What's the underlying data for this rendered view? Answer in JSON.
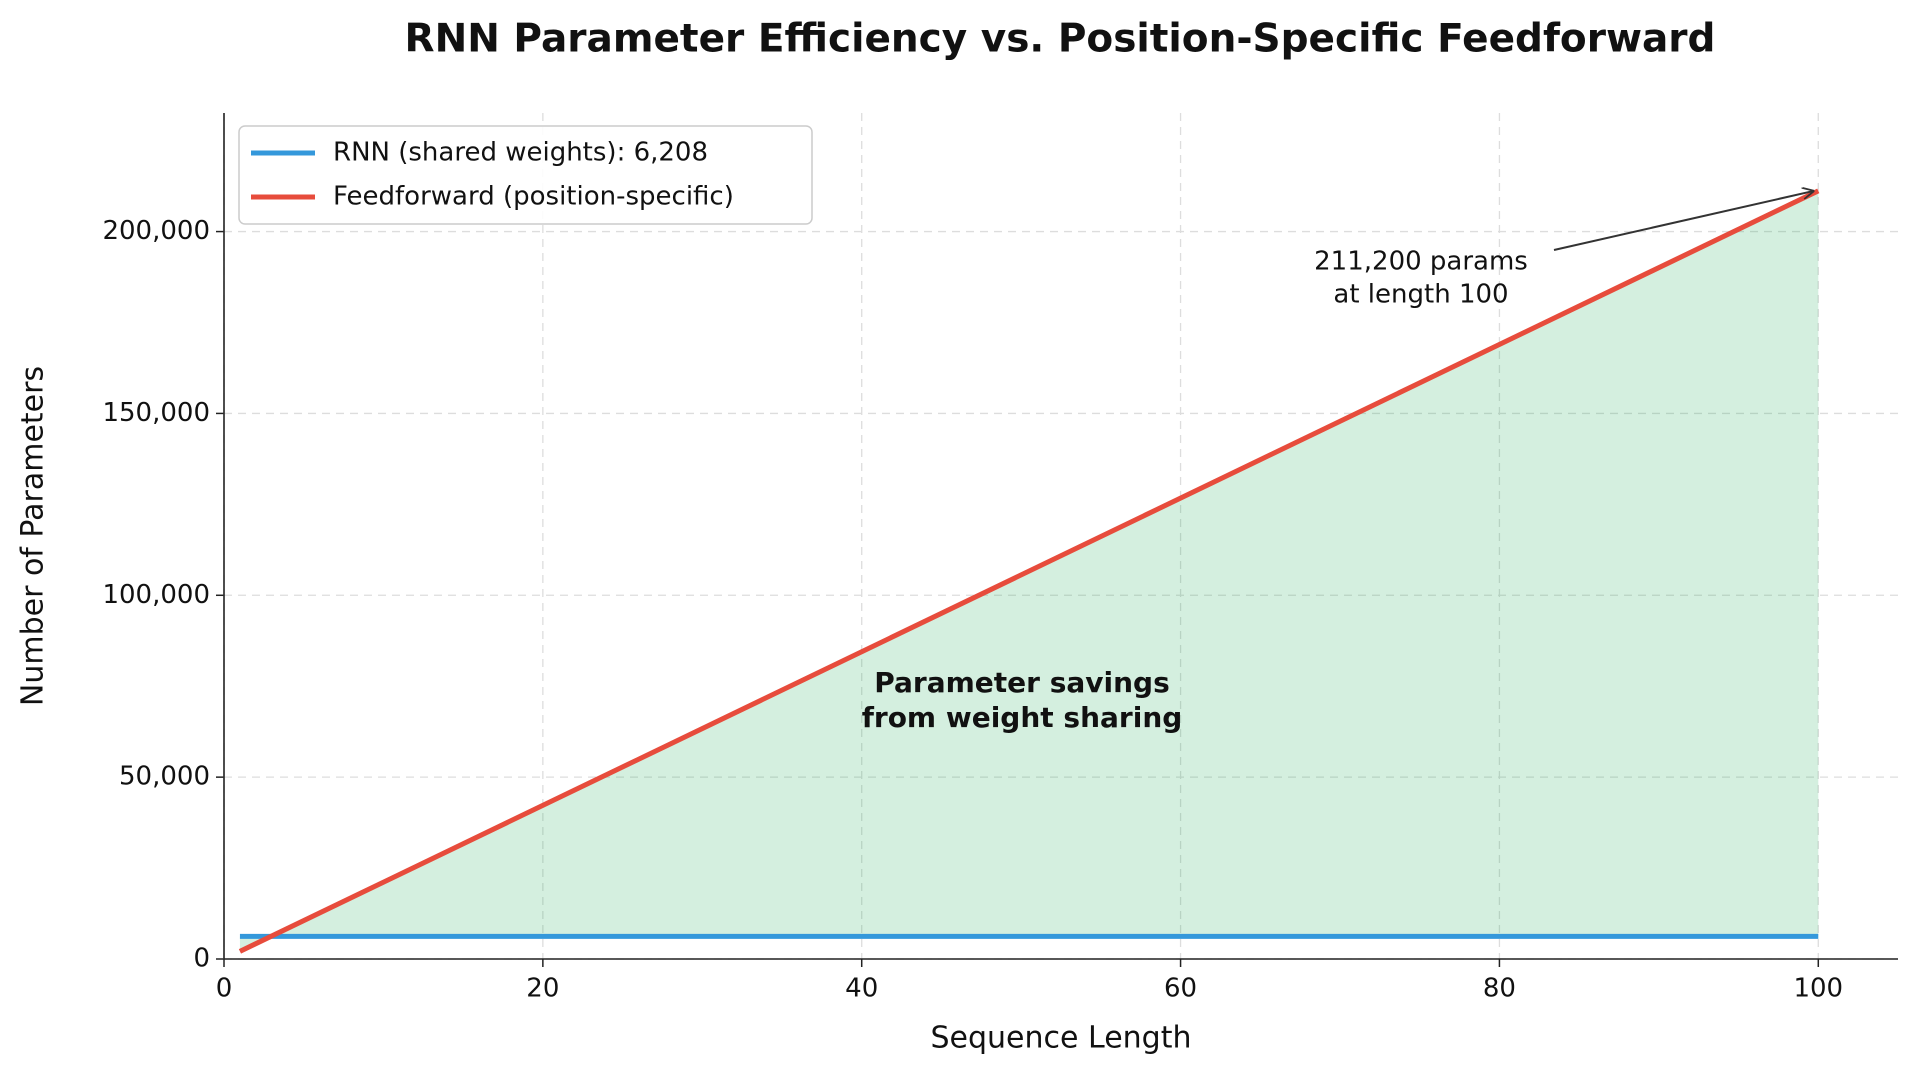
{
  "chart_data": {
    "type": "line",
    "title": "RNN Parameter Efficiency vs. Position-Specific Feedforward",
    "xlabel": "Sequence Length",
    "ylabel": "Number of Parameters",
    "x": [
      1,
      100
    ],
    "series": [
      {
        "name": "RNN (shared weights): 6,208",
        "color": "#3498db",
        "values": [
          6208,
          6208
        ]
      },
      {
        "name": "Feedforward (position-specific)",
        "color": "#e74c3c",
        "values": [
          2112,
          211200
        ]
      }
    ],
    "fill_between": true,
    "fill_color": "#27ae60",
    "fill_label": [
      "Parameter savings",
      "from weight sharing"
    ],
    "annotation": [
      "211,200 params",
      "at length 100"
    ],
    "xlim": [
      0,
      105
    ],
    "ylim": [
      0,
      232600
    ],
    "xticks": [
      0,
      20,
      40,
      60,
      80,
      100
    ],
    "yticks": [
      0,
      {
        "value": 50000,
        "label": "50,000"
      },
      {
        "value": 100000,
        "label": "100,000"
      },
      {
        "value": 150000,
        "label": "150,000"
      },
      {
        "value": 200000,
        "label": "200,000"
      }
    ],
    "grid": true,
    "legend": "upper left"
  }
}
